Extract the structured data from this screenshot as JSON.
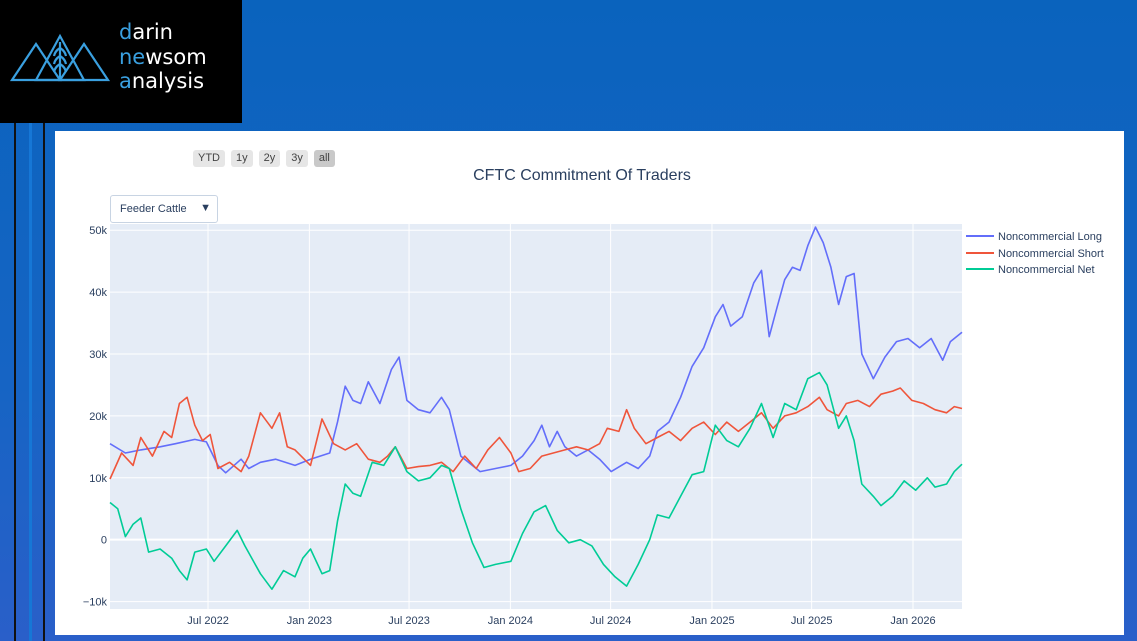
{
  "brand": {
    "line1_highlight": "d",
    "line1_rest": "arin",
    "line2_highlight": "ne",
    "line2_mid": "w",
    "line2_rest": "som",
    "line3_highlight": "a",
    "line3_rest": "nalysis",
    "text_color": "#ffffff",
    "highlight_color": "#3aa0e0"
  },
  "range_selector": {
    "buttons": [
      "YTD",
      "1y",
      "2y",
      "3y",
      "all"
    ],
    "active": "all"
  },
  "dropdown": {
    "selected": "Feeder Cattle"
  },
  "chart_data": {
    "type": "line",
    "title": "CFTC Commitment Of Traders",
    "xlabel": "",
    "ylabel": "",
    "y_ticks": [
      -10000,
      0,
      10000,
      20000,
      30000,
      40000,
      50000
    ],
    "y_tick_labels": [
      "−10k",
      "0",
      "10k",
      "20k",
      "30k",
      "40k",
      "50k"
    ],
    "ylim": [
      -11200,
      51000
    ],
    "x_tick_labels": [
      "Jul 2022",
      "Jan 2023",
      "Jul 2023",
      "Jan 2024",
      "Jul 2024",
      "Jan 2025",
      "Jul 2025",
      "Jan 2026"
    ],
    "x_tick_dates": [
      "2022-07-01",
      "2023-01-01",
      "2023-07-01",
      "2024-01-01",
      "2024-07-01",
      "2025-01-01",
      "2025-07-01",
      "2026-01-01"
    ],
    "xlim": [
      "2022-01-04",
      "2026-03-31"
    ],
    "grid": true,
    "legend_position": "top-right",
    "series": [
      {
        "name": "Noncommercial Long",
        "color": "#636efa",
        "points": [
          [
            "2022-01-04",
            15500
          ],
          [
            "2022-02-01",
            14000
          ],
          [
            "2022-03-01",
            14500
          ],
          [
            "2022-04-05",
            15000
          ],
          [
            "2022-05-03",
            15500
          ],
          [
            "2022-06-07",
            16200
          ],
          [
            "2022-06-28",
            15800
          ],
          [
            "2022-07-19",
            12000
          ],
          [
            "2022-08-02",
            10800
          ],
          [
            "2022-08-30",
            13000
          ],
          [
            "2022-09-13",
            11500
          ],
          [
            "2022-10-04",
            12500
          ],
          [
            "2022-11-01",
            13000
          ],
          [
            "2022-12-06",
            12000
          ],
          [
            "2023-01-03",
            13000
          ],
          [
            "2023-02-07",
            14000
          ],
          [
            "2023-02-21",
            19000
          ],
          [
            "2023-03-07",
            24800
          ],
          [
            "2023-03-21",
            22500
          ],
          [
            "2023-04-04",
            22000
          ],
          [
            "2023-04-18",
            25500
          ],
          [
            "2023-05-09",
            22000
          ],
          [
            "2023-05-30",
            27500
          ],
          [
            "2023-06-13",
            29500
          ],
          [
            "2023-06-27",
            22500
          ],
          [
            "2023-07-18",
            21000
          ],
          [
            "2023-08-08",
            20500
          ],
          [
            "2023-08-29",
            23000
          ],
          [
            "2023-09-12",
            21000
          ],
          [
            "2023-10-03",
            13500
          ],
          [
            "2023-11-07",
            11000
          ],
          [
            "2023-12-05",
            11500
          ],
          [
            "2024-01-02",
            12000
          ],
          [
            "2024-01-23",
            13500
          ],
          [
            "2024-02-13",
            16000
          ],
          [
            "2024-02-27",
            18500
          ],
          [
            "2024-03-12",
            15000
          ],
          [
            "2024-03-26",
            17500
          ],
          [
            "2024-04-09",
            15000
          ],
          [
            "2024-04-30",
            13500
          ],
          [
            "2024-05-21",
            14500
          ],
          [
            "2024-06-11",
            13000
          ],
          [
            "2024-07-02",
            11000
          ],
          [
            "2024-07-30",
            12500
          ],
          [
            "2024-08-20",
            11500
          ],
          [
            "2024-09-10",
            13500
          ],
          [
            "2024-09-24",
            17500
          ],
          [
            "2024-10-15",
            19000
          ],
          [
            "2024-11-05",
            23000
          ],
          [
            "2024-11-26",
            28000
          ],
          [
            "2024-12-17",
            31000
          ],
          [
            "2025-01-07",
            36000
          ],
          [
            "2025-01-21",
            38000
          ],
          [
            "2025-02-04",
            34500
          ],
          [
            "2025-02-25",
            36000
          ],
          [
            "2025-03-18",
            41500
          ],
          [
            "2025-04-01",
            43500
          ],
          [
            "2025-04-15",
            32800
          ],
          [
            "2025-04-29",
            37500
          ],
          [
            "2025-05-13",
            42000
          ],
          [
            "2025-05-27",
            44000
          ],
          [
            "2025-06-10",
            43500
          ],
          [
            "2025-06-24",
            47500
          ],
          [
            "2025-07-08",
            50500
          ],
          [
            "2025-07-22",
            48000
          ],
          [
            "2025-08-05",
            44000
          ],
          [
            "2025-08-19",
            38000
          ],
          [
            "2025-09-02",
            42500
          ],
          [
            "2025-09-16",
            43000
          ],
          [
            "2025-09-30",
            30000
          ],
          [
            "2025-10-21",
            26000
          ],
          [
            "2025-11-11",
            29500
          ],
          [
            "2025-12-02",
            32000
          ],
          [
            "2025-12-23",
            32500
          ],
          [
            "2026-01-13",
            31000
          ],
          [
            "2026-02-03",
            32500
          ],
          [
            "2026-02-24",
            29000
          ],
          [
            "2026-03-10",
            32000
          ],
          [
            "2026-03-31",
            33500
          ]
        ]
      },
      {
        "name": "Noncommercial Short",
        "color": "#ef553b",
        "points": [
          [
            "2022-01-04",
            9800
          ],
          [
            "2022-01-25",
            14000
          ],
          [
            "2022-02-15",
            12000
          ],
          [
            "2022-03-01",
            16500
          ],
          [
            "2022-03-22",
            13500
          ],
          [
            "2022-04-12",
            17500
          ],
          [
            "2022-04-26",
            16500
          ],
          [
            "2022-05-10",
            22000
          ],
          [
            "2022-05-24",
            23000
          ],
          [
            "2022-06-07",
            18500
          ],
          [
            "2022-06-21",
            16000
          ],
          [
            "2022-07-05",
            17000
          ],
          [
            "2022-07-19",
            11500
          ],
          [
            "2022-08-09",
            12500
          ],
          [
            "2022-08-30",
            11000
          ],
          [
            "2022-09-13",
            13500
          ],
          [
            "2022-10-04",
            20500
          ],
          [
            "2022-10-25",
            18000
          ],
          [
            "2022-11-08",
            20500
          ],
          [
            "2022-11-22",
            15000
          ],
          [
            "2022-12-06",
            14500
          ],
          [
            "2023-01-03",
            12000
          ],
          [
            "2023-01-24",
            19500
          ],
          [
            "2023-02-14",
            15500
          ],
          [
            "2023-03-07",
            14500
          ],
          [
            "2023-03-28",
            15500
          ],
          [
            "2023-04-18",
            13000
          ],
          [
            "2023-05-09",
            12500
          ],
          [
            "2023-05-23",
            13500
          ],
          [
            "2023-06-06",
            15000
          ],
          [
            "2023-06-27",
            11500
          ],
          [
            "2023-07-18",
            11800
          ],
          [
            "2023-08-08",
            12000
          ],
          [
            "2023-08-29",
            12500
          ],
          [
            "2023-09-19",
            11000
          ],
          [
            "2023-10-10",
            13500
          ],
          [
            "2023-10-31",
            11500
          ],
          [
            "2023-11-21",
            14500
          ],
          [
            "2023-12-12",
            16500
          ],
          [
            "2024-01-02",
            14000
          ],
          [
            "2024-01-16",
            11000
          ],
          [
            "2024-02-06",
            11500
          ],
          [
            "2024-02-27",
            13500
          ],
          [
            "2024-03-19",
            14000
          ],
          [
            "2024-04-09",
            14500
          ],
          [
            "2024-04-30",
            15000
          ],
          [
            "2024-05-21",
            14500
          ],
          [
            "2024-06-11",
            15500
          ],
          [
            "2024-06-25",
            18000
          ],
          [
            "2024-07-16",
            17500
          ],
          [
            "2024-07-30",
            21000
          ],
          [
            "2024-08-13",
            18000
          ],
          [
            "2024-09-03",
            15500
          ],
          [
            "2024-09-24",
            16500
          ],
          [
            "2024-10-15",
            17500
          ],
          [
            "2024-11-05",
            16000
          ],
          [
            "2024-11-26",
            18000
          ],
          [
            "2024-12-17",
            19000
          ],
          [
            "2025-01-07",
            17000
          ],
          [
            "2025-01-28",
            19000
          ],
          [
            "2025-02-18",
            17500
          ],
          [
            "2025-03-11",
            19000
          ],
          [
            "2025-04-01",
            20500
          ],
          [
            "2025-04-22",
            18000
          ],
          [
            "2025-05-13",
            20000
          ],
          [
            "2025-06-03",
            20500
          ],
          [
            "2025-06-24",
            21500
          ],
          [
            "2025-07-15",
            23000
          ],
          [
            "2025-07-29",
            21000
          ],
          [
            "2025-08-19",
            20000
          ],
          [
            "2025-09-02",
            22000
          ],
          [
            "2025-09-23",
            22500
          ],
          [
            "2025-10-14",
            21500
          ],
          [
            "2025-11-04",
            23500
          ],
          [
            "2025-11-25",
            24000
          ],
          [
            "2025-12-09",
            24500
          ],
          [
            "2025-12-30",
            22500
          ],
          [
            "2026-01-20",
            22000
          ],
          [
            "2026-02-10",
            21000
          ],
          [
            "2026-03-03",
            20500
          ],
          [
            "2026-03-17",
            21500
          ],
          [
            "2026-03-31",
            21200
          ]
        ]
      },
      {
        "name": "Noncommercial Net",
        "color": "#00cc96",
        "points": [
          [
            "2022-01-04",
            6000
          ],
          [
            "2022-01-18",
            5000
          ],
          [
            "2022-02-01",
            500
          ],
          [
            "2022-02-15",
            2500
          ],
          [
            "2022-03-01",
            3500
          ],
          [
            "2022-03-15",
            -2000
          ],
          [
            "2022-04-05",
            -1500
          ],
          [
            "2022-04-26",
            -3000
          ],
          [
            "2022-05-10",
            -5000
          ],
          [
            "2022-05-24",
            -6500
          ],
          [
            "2022-06-07",
            -2000
          ],
          [
            "2022-06-28",
            -1500
          ],
          [
            "2022-07-12",
            -3500
          ],
          [
            "2022-08-02",
            -1000
          ],
          [
            "2022-08-23",
            1500
          ],
          [
            "2022-09-06",
            -1000
          ],
          [
            "2022-10-04",
            -5500
          ],
          [
            "2022-10-25",
            -8000
          ],
          [
            "2022-11-15",
            -5000
          ],
          [
            "2022-12-06",
            -6000
          ],
          [
            "2022-12-20",
            -3000
          ],
          [
            "2023-01-03",
            -1500
          ],
          [
            "2023-01-24",
            -5500
          ],
          [
            "2023-02-07",
            -5000
          ],
          [
            "2023-02-21",
            3000
          ],
          [
            "2023-03-07",
            9000
          ],
          [
            "2023-03-21",
            7500
          ],
          [
            "2023-04-04",
            7000
          ],
          [
            "2023-04-25",
            12500
          ],
          [
            "2023-05-16",
            12000
          ],
          [
            "2023-06-06",
            15000
          ],
          [
            "2023-06-27",
            11000
          ],
          [
            "2023-07-18",
            9500
          ],
          [
            "2023-08-08",
            10000
          ],
          [
            "2023-08-29",
            12000
          ],
          [
            "2023-09-12",
            11500
          ],
          [
            "2023-10-03",
            5000
          ],
          [
            "2023-10-24",
            -500
          ],
          [
            "2023-11-14",
            -4500
          ],
          [
            "2023-12-05",
            -4000
          ],
          [
            "2024-01-02",
            -3500
          ],
          [
            "2024-01-23",
            1000
          ],
          [
            "2024-02-13",
            4500
          ],
          [
            "2024-03-05",
            5500
          ],
          [
            "2024-03-26",
            1500
          ],
          [
            "2024-04-16",
            -500
          ],
          [
            "2024-05-07",
            0
          ],
          [
            "2024-05-28",
            -1000
          ],
          [
            "2024-06-18",
            -4000
          ],
          [
            "2024-07-09",
            -6000
          ],
          [
            "2024-07-30",
            -7500
          ],
          [
            "2024-08-20",
            -4000
          ],
          [
            "2024-09-10",
            0
          ],
          [
            "2024-09-24",
            4000
          ],
          [
            "2024-10-15",
            3500
          ],
          [
            "2024-11-05",
            7000
          ],
          [
            "2024-11-26",
            10500
          ],
          [
            "2024-12-17",
            11000
          ],
          [
            "2025-01-07",
            18500
          ],
          [
            "2025-01-28",
            16000
          ],
          [
            "2025-02-18",
            15000
          ],
          [
            "2025-03-11",
            18000
          ],
          [
            "2025-04-01",
            22000
          ],
          [
            "2025-04-22",
            16500
          ],
          [
            "2025-05-13",
            22000
          ],
          [
            "2025-06-03",
            21000
          ],
          [
            "2025-06-24",
            26000
          ],
          [
            "2025-07-15",
            27000
          ],
          [
            "2025-07-29",
            25000
          ],
          [
            "2025-08-19",
            18000
          ],
          [
            "2025-09-02",
            20000
          ],
          [
            "2025-09-16",
            16000
          ],
          [
            "2025-09-30",
            9000
          ],
          [
            "2025-10-21",
            7000
          ],
          [
            "2025-11-04",
            5500
          ],
          [
            "2025-11-25",
            7000
          ],
          [
            "2025-12-16",
            9500
          ],
          [
            "2026-01-06",
            8000
          ],
          [
            "2026-01-27",
            10000
          ],
          [
            "2026-02-10",
            8500
          ],
          [
            "2026-03-03",
            9000
          ],
          [
            "2026-03-17",
            11000
          ],
          [
            "2026-03-31",
            12200
          ]
        ]
      }
    ]
  }
}
